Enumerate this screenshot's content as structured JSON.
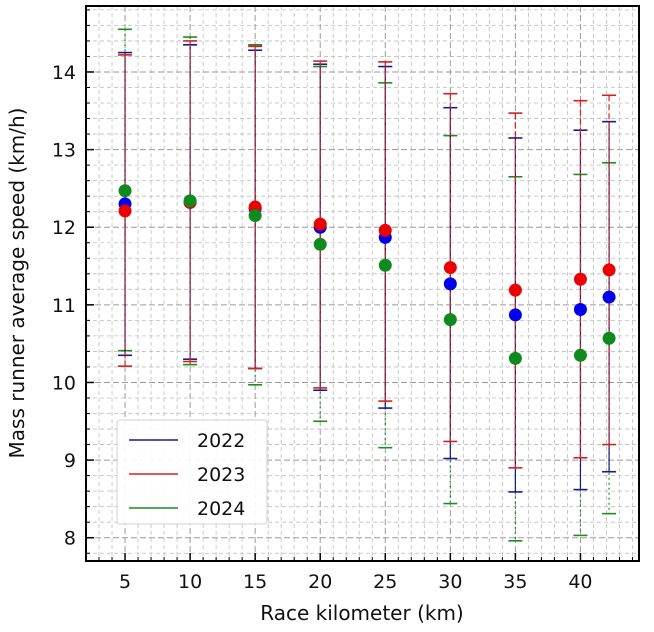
{
  "chart_data": {
    "type": "scatter",
    "xlabel": "Race kilometer (km)",
    "ylabel": "Mass runner average speed (km/h)",
    "xlim": [
      2,
      44.5
    ],
    "ylim": [
      7.7,
      14.85
    ],
    "xticks": [
      5,
      10,
      15,
      20,
      25,
      30,
      35,
      40
    ],
    "xtick_labels": [
      "5",
      "10",
      "15",
      "20",
      "25",
      "30",
      "35",
      "40"
    ],
    "yticks": [
      8,
      9,
      10,
      11,
      12,
      13,
      14
    ],
    "ytick_labels": [
      "8",
      "9",
      "10",
      "11",
      "12",
      "13",
      "14"
    ],
    "grid": true,
    "minor_grid": true,
    "legend_position": "lower-left",
    "x": [
      5,
      10,
      15,
      20,
      25,
      30,
      35,
      40,
      42.2
    ],
    "series": [
      {
        "name": "2022",
        "color": "#1a1a8c",
        "marker_color": "#0000ee",
        "mean": [
          12.3,
          12.32,
          12.24,
          12.0,
          11.87,
          11.27,
          10.87,
          10.94,
          11.1
        ],
        "upper": [
          14.25,
          14.35,
          14.28,
          14.1,
          14.07,
          13.54,
          13.15,
          13.25,
          13.36
        ],
        "lower": [
          10.35,
          10.3,
          10.18,
          9.9,
          9.67,
          9.02,
          8.59,
          8.62,
          8.85
        ]
      },
      {
        "name": "2023",
        "color": "#d62020",
        "marker_color": "#ee0000",
        "mean": [
          12.21,
          12.32,
          12.26,
          12.04,
          11.96,
          11.48,
          11.19,
          11.33,
          11.45
        ],
        "upper": [
          14.22,
          14.4,
          14.33,
          14.14,
          14.13,
          13.72,
          13.47,
          13.63,
          13.7
        ],
        "lower": [
          10.21,
          10.27,
          10.18,
          9.93,
          9.76,
          9.24,
          8.9,
          9.03,
          9.2
        ]
      },
      {
        "name": "2024",
        "color": "#1e8c1e",
        "marker_color": "#0e8a1e",
        "mean": [
          12.47,
          12.34,
          12.15,
          11.78,
          11.51,
          10.81,
          10.31,
          10.35,
          10.57
        ],
        "upper": [
          14.55,
          14.45,
          14.35,
          14.07,
          13.86,
          13.18,
          12.65,
          12.68,
          12.83
        ],
        "lower": [
          10.41,
          10.23,
          9.97,
          9.5,
          9.16,
          8.44,
          7.96,
          8.03,
          8.31
        ]
      }
    ]
  }
}
